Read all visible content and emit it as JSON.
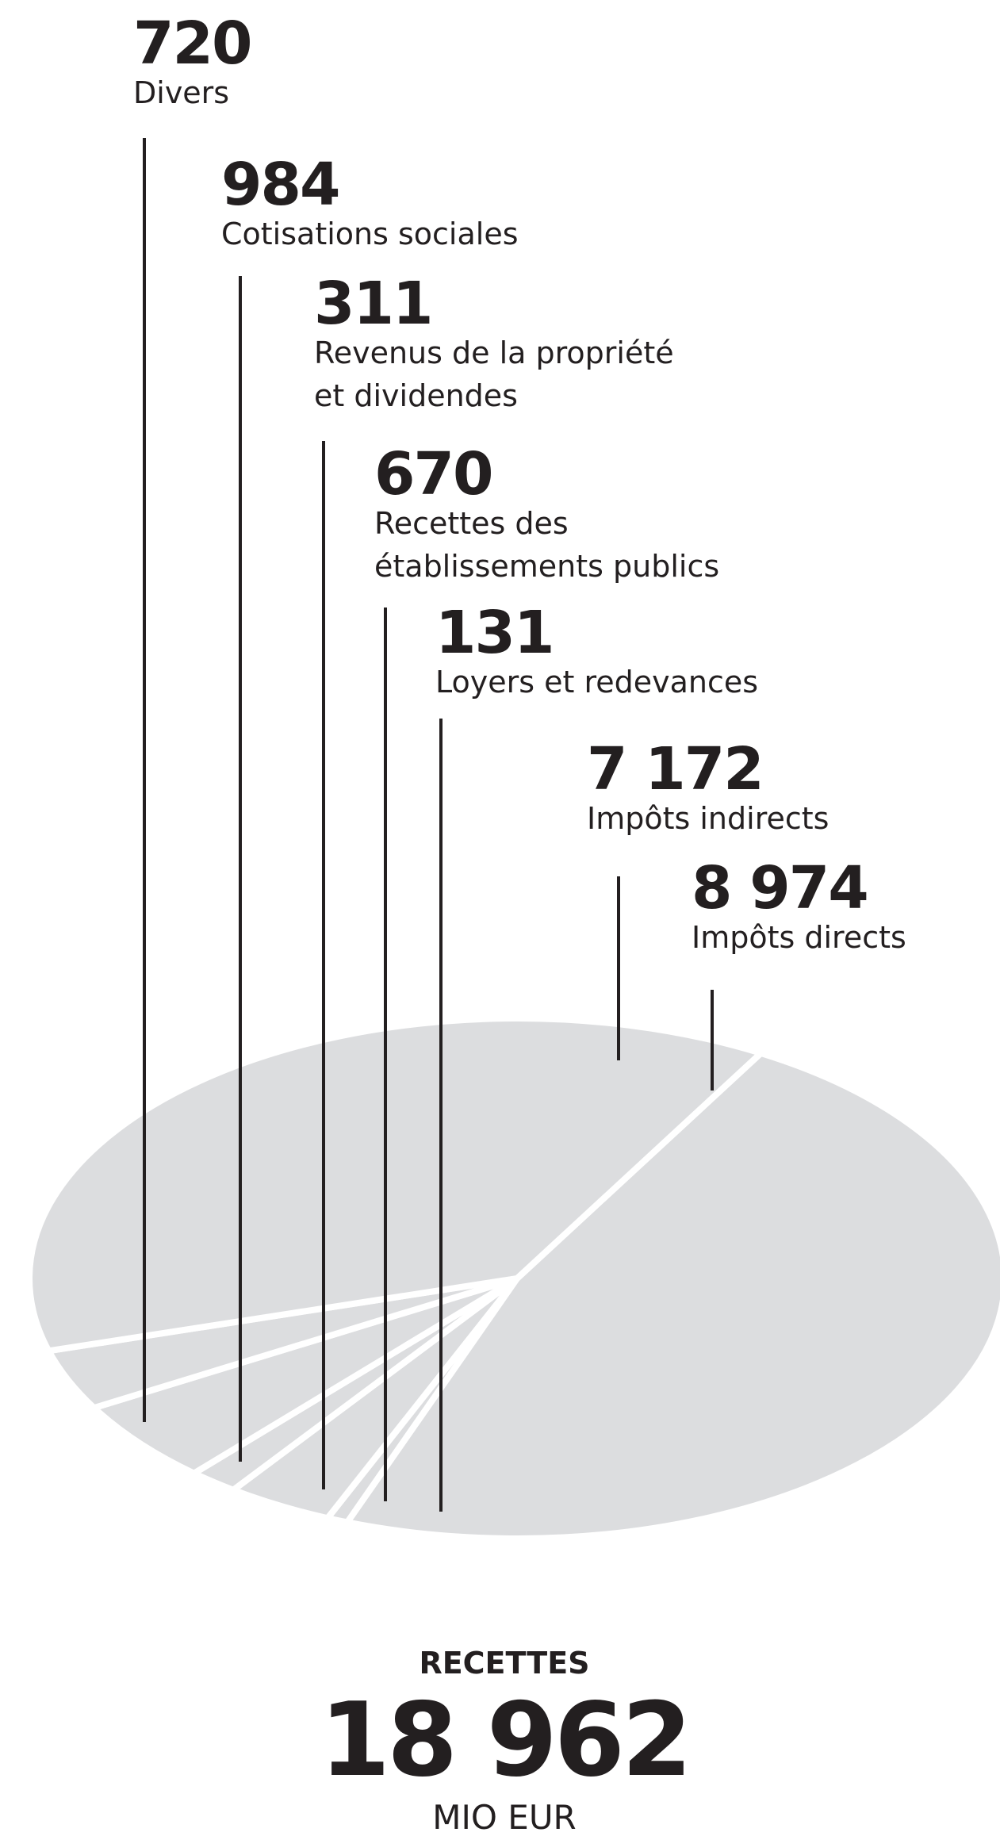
{
  "chart_data": {
    "type": "pie",
    "unit": "MIO EUR",
    "colors": {
      "slice": "#dcdddf",
      "separator": "#ffffff",
      "ink": "#231f20"
    },
    "slices": [
      {
        "value": "720",
        "amount": 720,
        "label": [
          "Divers"
        ]
      },
      {
        "value": "984",
        "amount": 984,
        "label": [
          "Cotisations sociales"
        ]
      },
      {
        "value": "311",
        "amount": 311,
        "label": [
          "Revenus de la propriété",
          "et dividendes"
        ]
      },
      {
        "value": "670",
        "amount": 670,
        "label": [
          "Recettes des",
          "établissements publics"
        ]
      },
      {
        "value": "131",
        "amount": 131,
        "label": [
          "Loyers et redevances"
        ]
      },
      {
        "value": "7 172",
        "amount": 7172,
        "label": [
          "Impôts indirects"
        ]
      },
      {
        "value": "8 974",
        "amount": 8974,
        "label": [
          "Impôts directs"
        ]
      }
    ],
    "total": {
      "title": "RECETTES",
      "value": "18 962",
      "unit": "MIO EUR"
    }
  }
}
